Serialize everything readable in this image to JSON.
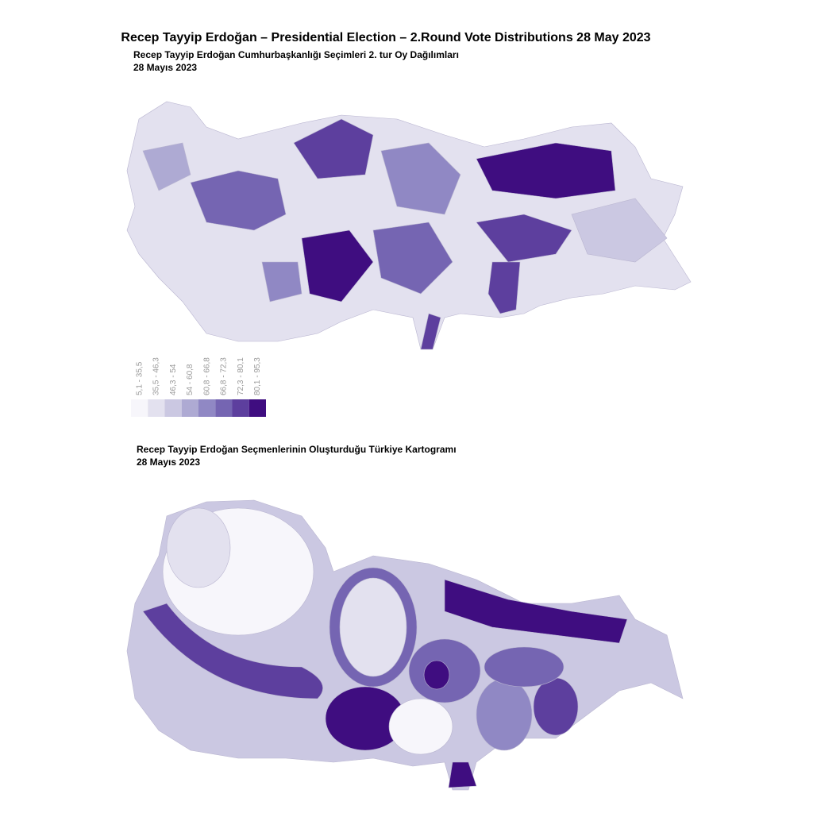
{
  "title": "Recep Tayyip Erdoğan – Presidential Election – 2.Round Vote Distributions 28 May 2023",
  "map1": {
    "title": "Recep Tayyip Erdoğan Cumhurbaşkanlığı Seçimleri 2. tur Oy Dağılımları",
    "date": "28 Mayıs 2023"
  },
  "legend": {
    "classes": [
      {
        "label": "5,1 - 35,5",
        "color": "#f7f6fb"
      },
      {
        "label": "35,5 - 46,3",
        "color": "#e3e1ef"
      },
      {
        "label": "46,3 - 54",
        "color": "#cbc8e2"
      },
      {
        "label": "54 - 60,8",
        "color": "#aeaad3"
      },
      {
        "label": "60,8 - 66,8",
        "color": "#9088c4"
      },
      {
        "label": "66,8 - 72,3",
        "color": "#7565b2"
      },
      {
        "label": "72,3 - 80,1",
        "color": "#5d3f9e"
      },
      {
        "label": "80,1 - 95,3",
        "color": "#3f0d80"
      }
    ]
  },
  "map2": {
    "title": "Recep Tayyip Erdoğan Seçmenlerinin Oluşturduğu Türkiye Kartogramı",
    "date": "28 Mayıs 2023"
  }
}
